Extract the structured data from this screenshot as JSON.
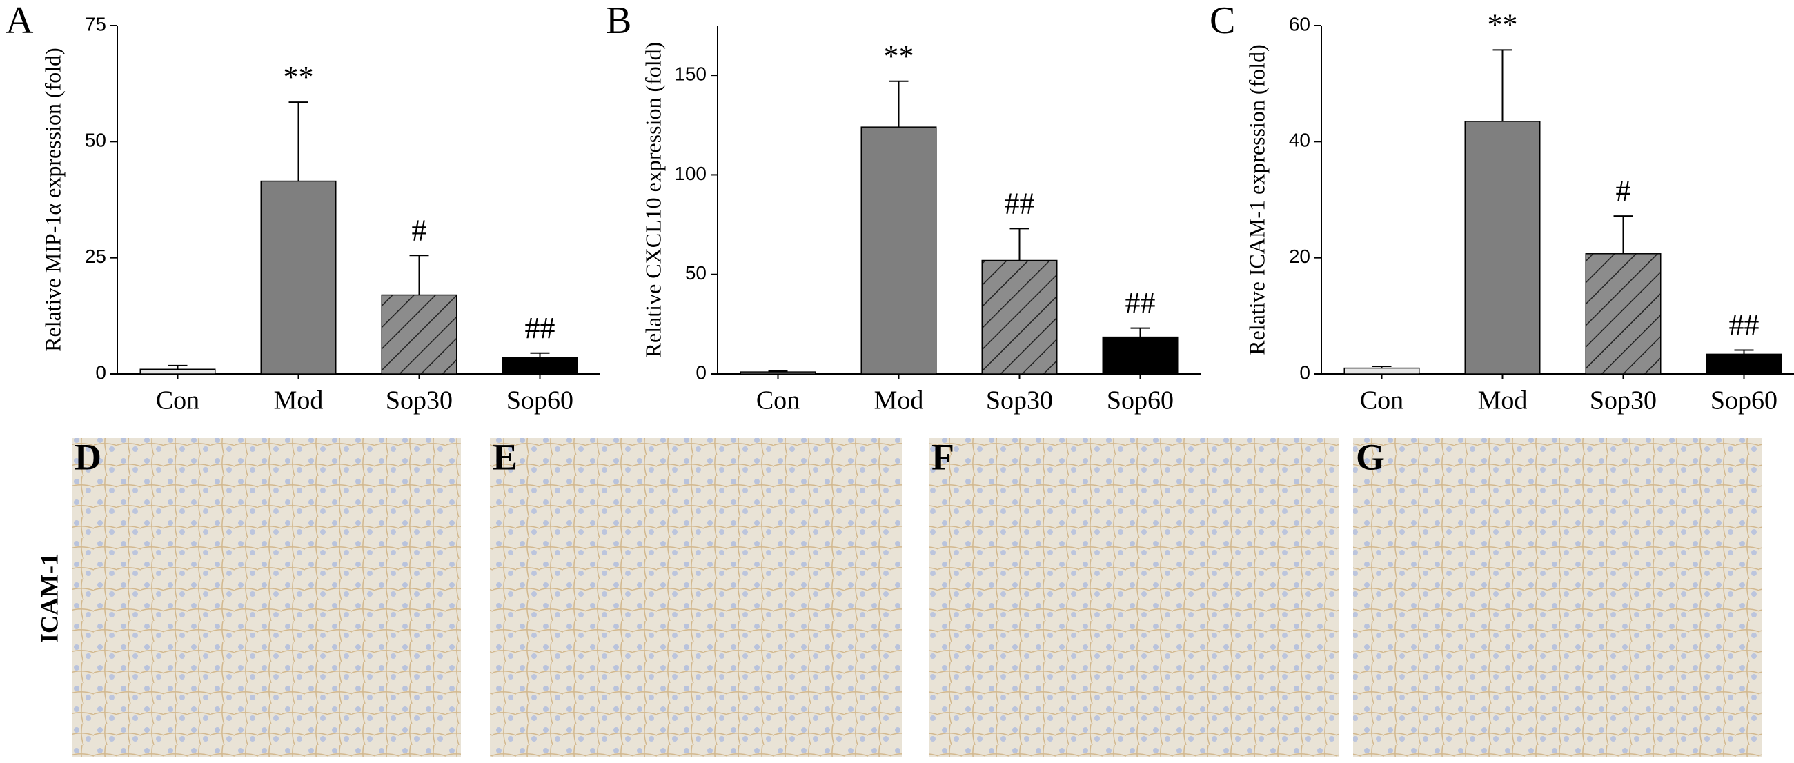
{
  "chart_data": [
    {
      "type": "bar",
      "panel": "A",
      "y_label": "Relative MIP-1α expression (fold)",
      "categories": [
        "Con",
        "Mod",
        "Sop30",
        "Sop60"
      ],
      "values": [
        1,
        41.5,
        17,
        3.5
      ],
      "errors": [
        0.8,
        17,
        8.5,
        1
      ],
      "annotations": [
        null,
        "**",
        "#",
        "##"
      ],
      "colors": [
        "#e6e6e6",
        "#7f7f7f",
        "#8c8c8c",
        "#000000"
      ],
      "hatched": [
        false,
        false,
        true,
        false
      ],
      "ylim": [
        0,
        75
      ],
      "yticks": [
        0,
        25,
        50,
        75
      ]
    },
    {
      "type": "bar",
      "panel": "B",
      "y_label": "Relative CXCL10 expression (fold)",
      "categories": [
        "Con",
        "Mod",
        "Sop30",
        "Sop60"
      ],
      "values": [
        1,
        124,
        57,
        18.5
      ],
      "errors": [
        0.5,
        23,
        16,
        4.5
      ],
      "annotations": [
        null,
        "**",
        "##",
        "##"
      ],
      "colors": [
        "#e6e6e6",
        "#7f7f7f",
        "#8c8c8c",
        "#000000"
      ],
      "hatched": [
        false,
        false,
        true,
        false
      ],
      "ylim": [
        0,
        175
      ],
      "yticks": [
        0,
        50,
        100,
        150
      ]
    },
    {
      "type": "bar",
      "panel": "C",
      "y_label": "Relative ICAM-1 expression (fold)",
      "categories": [
        "Con",
        "Mod",
        "Sop30",
        "Sop60"
      ],
      "values": [
        1,
        43.5,
        20.7,
        3.4
      ],
      "errors": [
        0.3,
        12.3,
        6.5,
        0.7
      ],
      "annotations": [
        null,
        "**",
        "#",
        "##"
      ],
      "colors": [
        "#e6e6e6",
        "#7f7f7f",
        "#8c8c8c",
        "#000000"
      ],
      "hatched": [
        false,
        false,
        true,
        false
      ],
      "ylim": [
        0,
        60
      ],
      "yticks": [
        0,
        20,
        40,
        60
      ]
    }
  ],
  "micrographs": {
    "row_label": "ICAM-1",
    "panels": [
      "D",
      "E",
      "F",
      "G"
    ]
  }
}
